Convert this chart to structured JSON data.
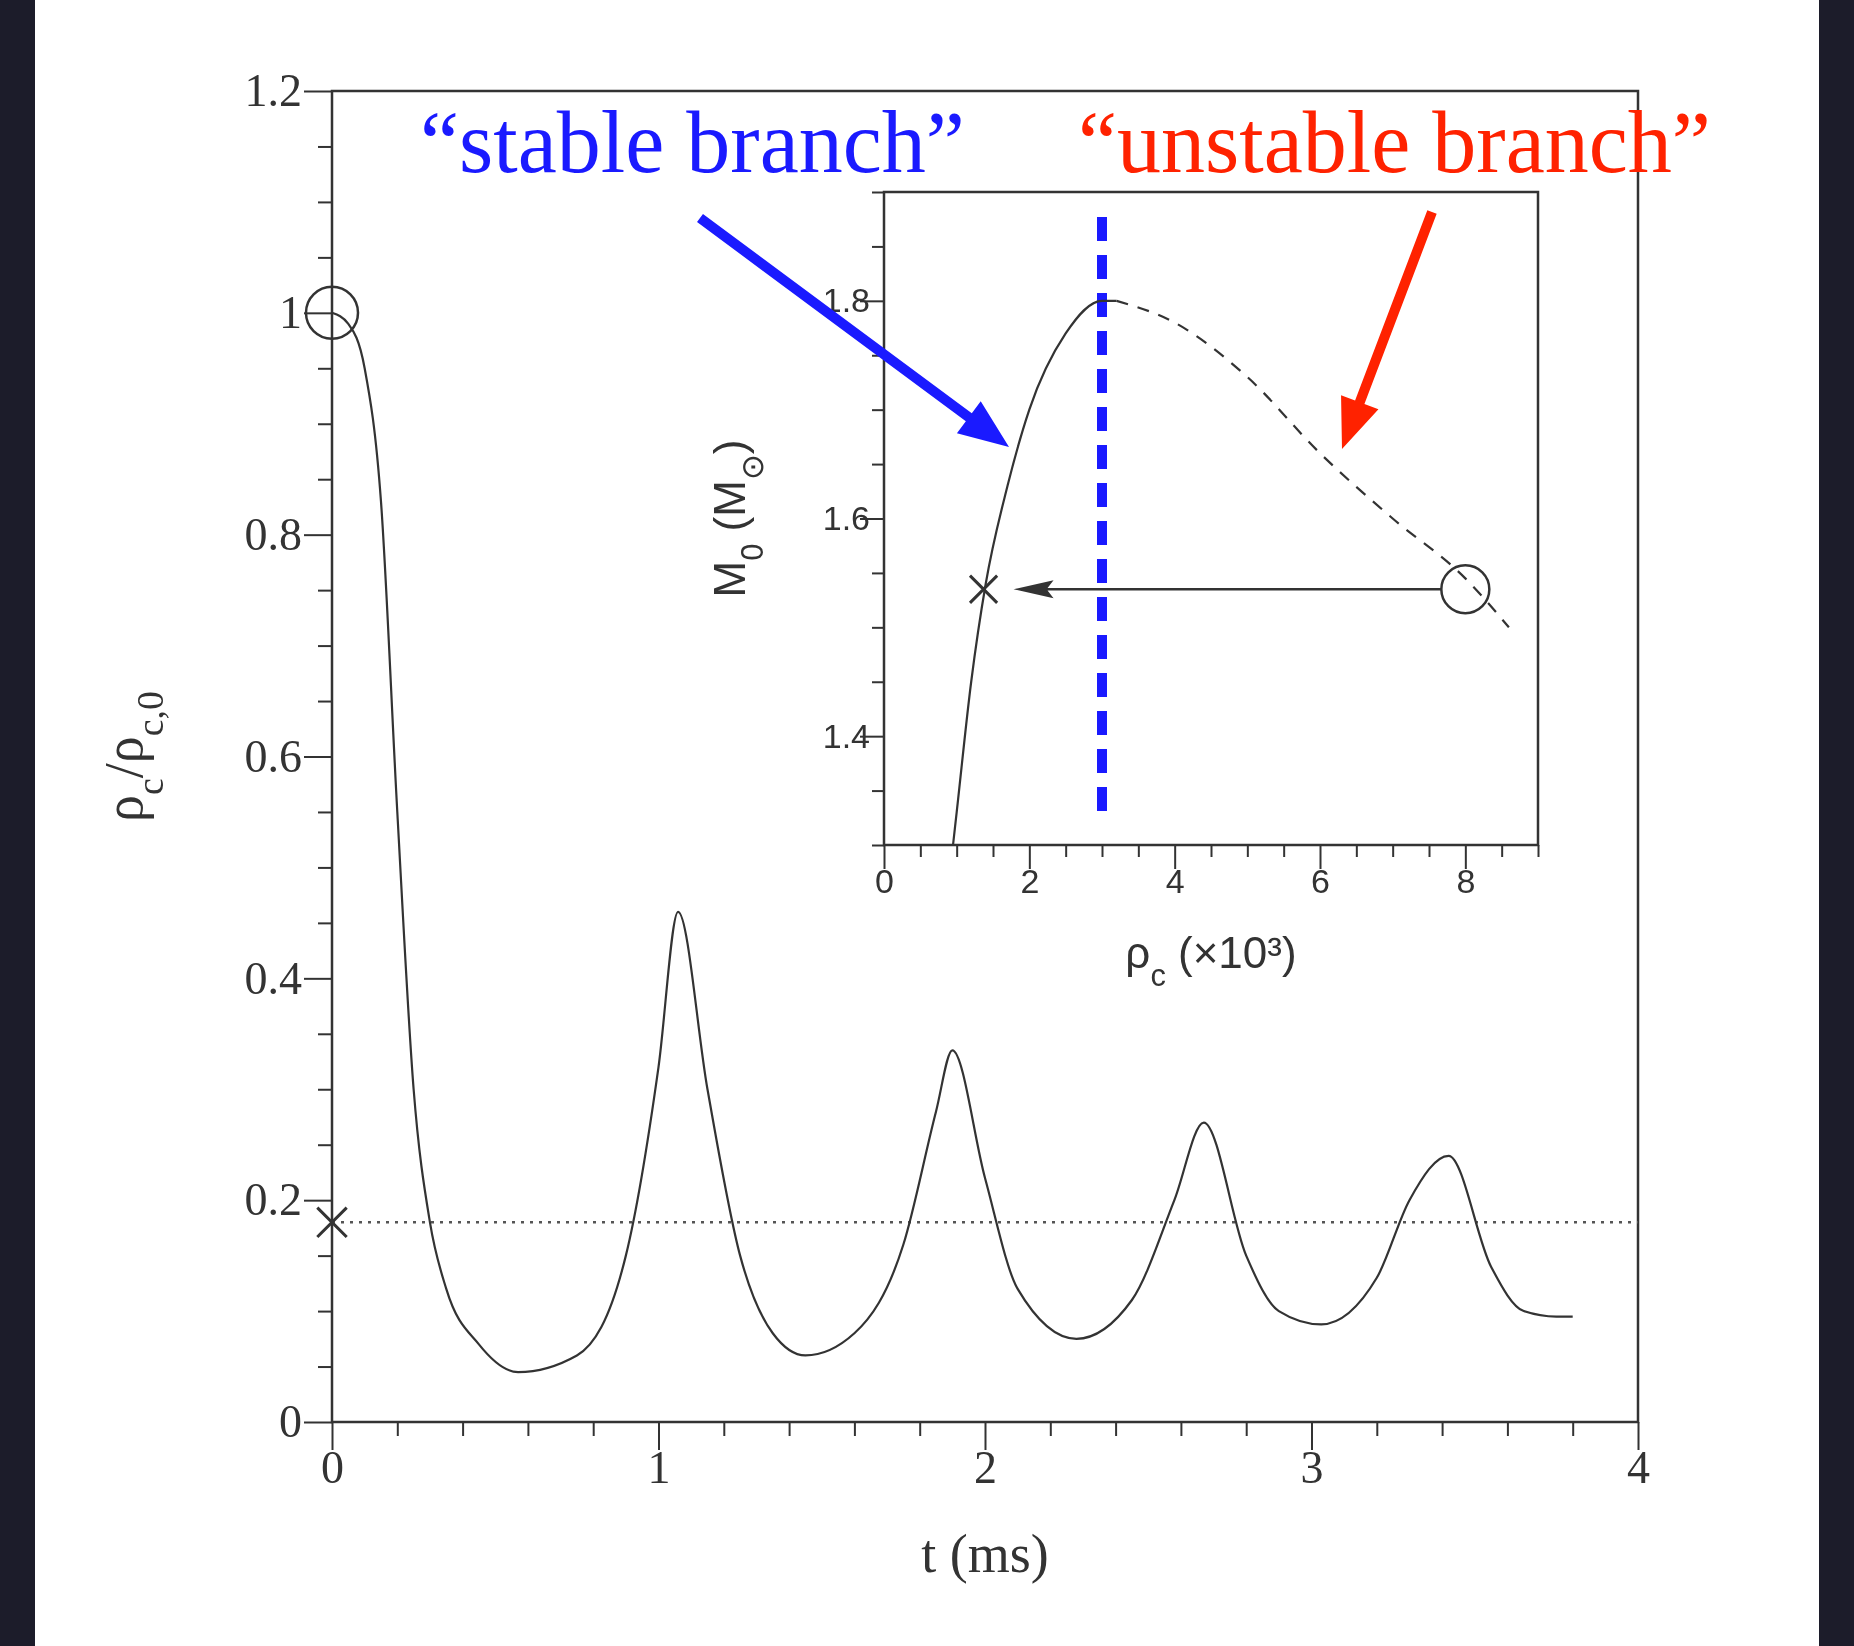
{
  "chart_data": [
    {
      "type": "line",
      "xlabel": "t (ms)",
      "ylabel": "ρ$_{c}$/ρ$_{c,0}$",
      "xlim": [
        0,
        4
      ],
      "ylim": [
        0,
        1.2
      ],
      "xticks": [
        0,
        {
          "value": 0.2,
          "label": null
        },
        {
          "value": 0.4,
          "label": null
        },
        {
          "value": 0.6,
          "label": null
        },
        {
          "value": 0.8,
          "label": null
        },
        1,
        {
          "value": 1.2,
          "label": null
        },
        {
          "value": 1.4,
          "label": null
        },
        {
          "value": 1.6,
          "label": null
        },
        {
          "value": 1.8,
          "label": null
        },
        2,
        {
          "value": 2.2,
          "label": null
        },
        {
          "value": 2.4,
          "label": null
        },
        {
          "value": 2.6,
          "label": null
        },
        {
          "value": 2.8,
          "label": null
        },
        3,
        {
          "value": 3.2,
          "label": null
        },
        {
          "value": 3.4,
          "label": null
        },
        {
          "value": 3.6,
          "label": null
        },
        {
          "value": 3.8,
          "label": null
        },
        4
      ],
      "yticks": [
        0,
        {
          "value": 0.05,
          "label": null
        },
        {
          "value": 0.1,
          "label": null
        },
        {
          "value": 0.15,
          "label": null
        },
        0.2,
        {
          "value": 0.25,
          "label": null
        },
        {
          "value": 0.3,
          "label": null
        },
        {
          "value": 0.35,
          "label": null
        },
        0.4,
        {
          "value": 0.45,
          "label": null
        },
        {
          "value": 0.5,
          "label": null
        },
        {
          "value": 0.55,
          "label": null
        },
        0.6,
        {
          "value": 0.65,
          "label": null
        },
        {
          "value": 0.7,
          "label": null
        },
        {
          "value": 0.75,
          "label": null
        },
        0.8,
        {
          "value": 0.85,
          "label": null
        },
        {
          "value": 0.9,
          "label": null
        },
        {
          "value": 0.95,
          "label": null
        },
        1,
        {
          "value": 1.05,
          "label": null
        },
        {
          "value": 1.1,
          "label": null
        },
        {
          "value": 1.15,
          "label": null
        },
        1.2
      ],
      "ref_lines": [
        {
          "axis": "y",
          "value": 0.18,
          "line_style": "dotted",
          "color": "#555555"
        }
      ],
      "series": [
        {
          "line_style": "solid",
          "color": "#333333",
          "x": [
            0,
            0.05,
            0.1,
            0.15,
            0.2,
            0.25,
            0.3,
            0.35,
            0.45,
            0.57,
            0.75,
            0.9,
            1.0,
            1.06,
            1.15,
            1.25,
            1.35,
            1.45,
            1.6,
            1.75,
            1.85,
            1.9,
            2.0,
            2.1,
            2.28,
            2.45,
            2.58,
            2.67,
            2.8,
            2.9,
            3.03,
            3.2,
            3.3,
            3.42,
            3.55,
            3.65,
            3.75,
            3.8
          ],
          "values": [
            1.0,
            0.99,
            0.95,
            0.83,
            0.55,
            0.3,
            0.18,
            0.12,
            0.07,
            0.045,
            0.06,
            0.15,
            0.32,
            0.46,
            0.3,
            0.15,
            0.08,
            0.06,
            0.08,
            0.16,
            0.28,
            0.335,
            0.22,
            0.12,
            0.075,
            0.11,
            0.2,
            0.27,
            0.15,
            0.1,
            0.088,
            0.13,
            0.2,
            0.24,
            0.14,
            0.1,
            0.095,
            0.095
          ]
        },
        {
          "type": "scatter",
          "marker": "circle",
          "color": "#333333",
          "x": [
            0
          ],
          "values": [
            1.0
          ]
        },
        {
          "type": "scatter",
          "marker": "cross",
          "color": "#333333",
          "x": [
            0
          ],
          "values": [
            0.18
          ]
        }
      ]
    },
    {
      "type": "line",
      "xlabel": "ρ$_{c}$ (×10³)",
      "ylabel": "M$_{0}$ (M$_{⊙}$)",
      "xlim": [
        0,
        9
      ],
      "ylim": [
        1.3,
        1.9
      ],
      "xticks": [
        0,
        {
          "value": 0.5,
          "label": null
        },
        {
          "value": 1,
          "label": null
        },
        {
          "value": 1.5,
          "label": null
        },
        2,
        {
          "value": 2.5,
          "label": null
        },
        {
          "value": 3,
          "label": null
        },
        {
          "value": 3.5,
          "label": null
        },
        4,
        {
          "value": 4.5,
          "label": null
        },
        {
          "value": 5,
          "label": null
        },
        {
          "value": 5.5,
          "label": null
        },
        6,
        {
          "value": 6.5,
          "label": null
        },
        {
          "value": 7,
          "label": null
        },
        {
          "value": 7.5,
          "label": null
        },
        8,
        {
          "value": 8.5,
          "label": null
        },
        {
          "value": 9,
          "label": null
        }
      ],
      "yticks": [
        {
          "value": 1.3,
          "label": null
        },
        {
          "value": 1.35,
          "label": null
        },
        1.4,
        {
          "value": 1.45,
          "label": null
        },
        {
          "value": 1.5,
          "label": null
        },
        {
          "value": 1.55,
          "label": null
        },
        1.6,
        {
          "value": 1.65,
          "label": null
        },
        {
          "value": 1.7,
          "label": null
        },
        {
          "value": 1.75,
          "label": null
        },
        1.8,
        {
          "value": 1.85,
          "label": null
        },
        {
          "value": 1.9,
          "label": null
        }
      ],
      "ref_lines": [
        {
          "axis": "x",
          "value": 3,
          "line_style": "dashed",
          "color": "#1a1aff"
        }
      ],
      "annotations": [
        "“stable branch”",
        "“unstable branch”"
      ],
      "series": [
        {
          "line_style": "solid",
          "color": "#333333",
          "x": [
            0.95,
            1.0,
            1.2,
            1.4,
            1.7,
            2.0,
            2.5,
            3.0,
            3.2
          ],
          "values": [
            1.3,
            1.33,
            1.45,
            1.54,
            1.63,
            1.7,
            1.77,
            1.8,
            1.8
          ]
        },
        {
          "line_style": "dashed",
          "color": "#333333",
          "x": [
            3.2,
            4,
            5,
            6,
            7,
            8,
            8.6
          ],
          "values": [
            1.8,
            1.78,
            1.73,
            1.66,
            1.6,
            1.545,
            1.5
          ]
        },
        {
          "type": "scatter",
          "marker": "circle",
          "color": "#333333",
          "x": [
            8
          ],
          "values": [
            1.535
          ]
        },
        {
          "type": "scatter",
          "marker": "cross",
          "color": "#333333",
          "x": [
            1.37
          ],
          "values": [
            1.535
          ]
        }
      ]
    }
  ]
}
